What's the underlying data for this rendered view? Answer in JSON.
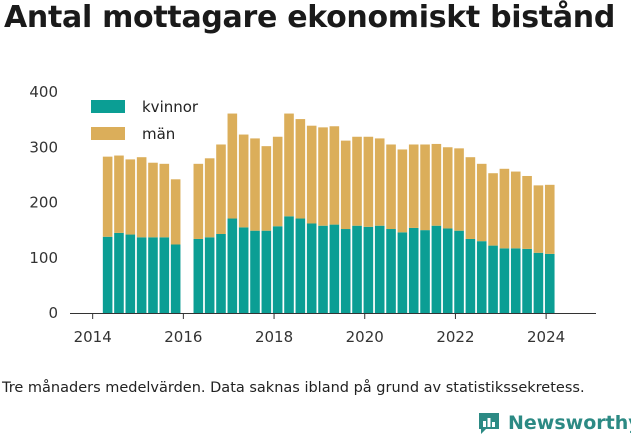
{
  "title": "Antal mottagare ekonomiskt bistånd",
  "note": "Tre månaders medelvärden. Data saknas ibland på grund av statistikssekretess.",
  "brand": {
    "name": "Newsworthy",
    "icon": "newsworthy-logo-icon"
  },
  "colors": {
    "kvinnor": "#0b9e94",
    "man": "#dbae5a",
    "axis": "#333333",
    "grid": "#dddddd"
  },
  "chart_data": {
    "type": "bar",
    "stacked": true,
    "xlim": [
      2013.5,
      2025.1
    ],
    "ylim": [
      0,
      400
    ],
    "xticks": [
      2014,
      2016,
      2018,
      2020,
      2022,
      2024
    ],
    "yticks": [
      0,
      100,
      200,
      300,
      400
    ],
    "grid": false,
    "legend": "top-left",
    "x": [
      2014.33,
      2014.58,
      2014.83,
      2015.08,
      2015.33,
      2015.58,
      2015.83,
      2016.33,
      2016.58,
      2016.83,
      2017.08,
      2017.33,
      2017.58,
      2017.83,
      2018.08,
      2018.33,
      2018.58,
      2018.83,
      2019.08,
      2019.33,
      2019.58,
      2019.83,
      2020.08,
      2020.33,
      2020.58,
      2020.83,
      2021.08,
      2021.33,
      2021.58,
      2021.83,
      2022.08,
      2022.33,
      2022.58,
      2022.83,
      2023.08,
      2023.33,
      2023.58,
      2023.83,
      2024.08
    ],
    "series": [
      {
        "name": "kvinnor",
        "values": [
          138,
          145,
          142,
          137,
          137,
          137,
          124,
          134,
          137,
          143,
          171,
          155,
          149,
          149,
          157,
          175,
          171,
          162,
          158,
          160,
          152,
          158,
          156,
          158,
          152,
          146,
          154,
          150,
          158,
          153,
          149,
          134,
          130,
          122,
          117,
          117,
          116,
          109,
          107
        ]
      },
      {
        "name": "män",
        "values": [
          145,
          140,
          136,
          145,
          135,
          133,
          118,
          136,
          143,
          162,
          190,
          168,
          167,
          153,
          162,
          186,
          180,
          177,
          178,
          178,
          160,
          161,
          163,
          158,
          153,
          150,
          151,
          155,
          148,
          147,
          149,
          148,
          140,
          131,
          144,
          139,
          132,
          122,
          125
        ]
      }
    ]
  }
}
